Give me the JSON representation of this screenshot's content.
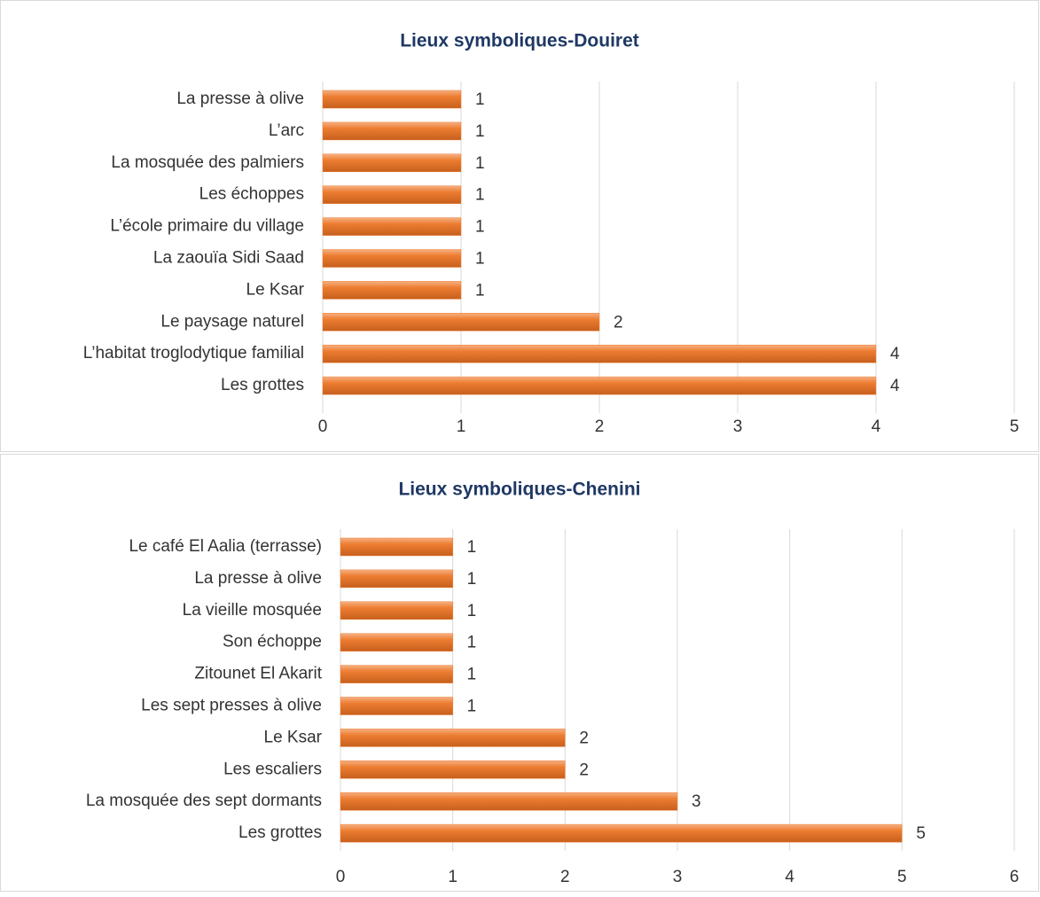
{
  "chart_data": [
    {
      "type": "bar",
      "orientation": "horizontal",
      "title": "Lieux symboliques-Douiret",
      "categories": [
        "La presse à olive",
        "L’arc",
        "La mosquée des palmiers",
        "Les échoppes",
        "L’école primaire du village",
        "La zaouïa Sidi Saad",
        "Le Ksar",
        "Le paysage naturel",
        "L’habitat troglodytique familial",
        "Les grottes"
      ],
      "values": [
        1,
        1,
        1,
        1,
        1,
        1,
        1,
        2,
        4,
        4
      ],
      "color": "#ed7d31",
      "xlim": [
        0,
        5
      ],
      "xticks": [
        0,
        1,
        2,
        3,
        4,
        5
      ],
      "grid": true
    },
    {
      "type": "bar",
      "orientation": "horizontal",
      "title": "Lieux symboliques-Chenini",
      "categories": [
        "Le café El Aalia (terrasse)",
        "La presse à olive",
        "La vieille mosquée",
        "Son échoppe",
        "Zitounet El Akarit",
        "Les sept presses à olive",
        "Le Ksar",
        "Les escaliers",
        "La mosquée des sept dormants",
        "Les grottes"
      ],
      "values": [
        1,
        1,
        1,
        1,
        1,
        1,
        2,
        2,
        3,
        5
      ],
      "color": "#ed7d31",
      "xlim": [
        0,
        6
      ],
      "xticks": [
        0,
        1,
        2,
        3,
        4,
        5,
        6
      ],
      "grid": true
    }
  ]
}
